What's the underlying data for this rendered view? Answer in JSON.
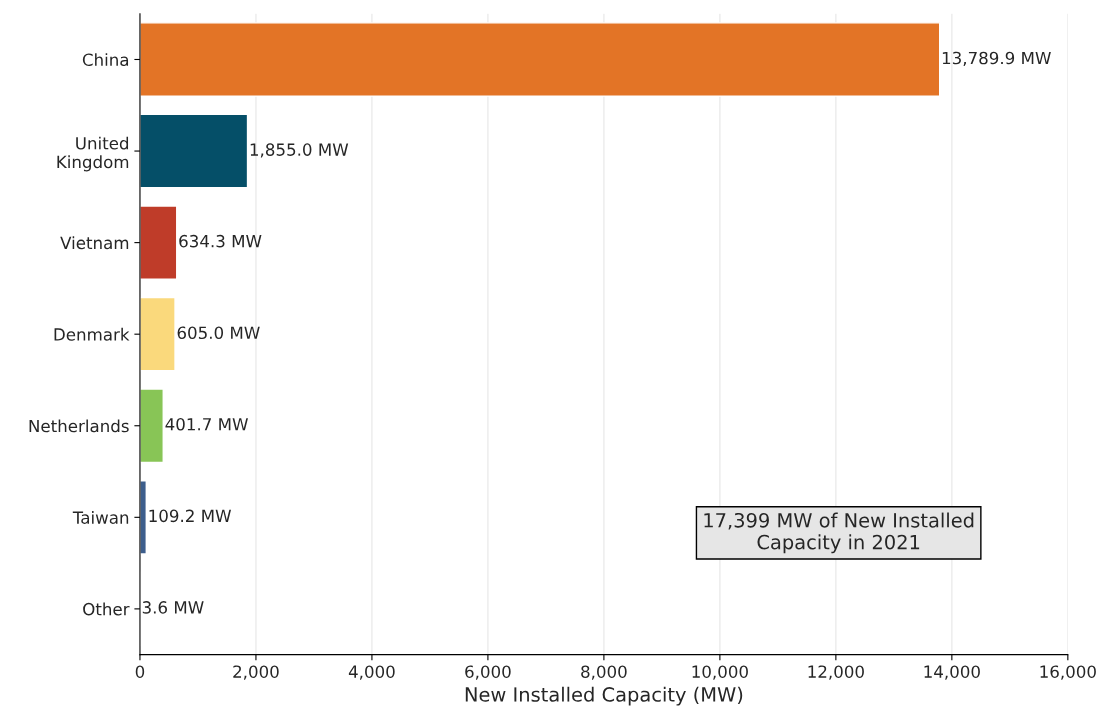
{
  "chart_data": {
    "type": "bar",
    "orientation": "horizontal",
    "xlabel": "New Installed Capacity (MW)",
    "categories": [
      "China",
      "United\nKingdom",
      "Vietnam",
      "Denmark",
      "Netherlands",
      "Taiwan",
      "Other"
    ],
    "values": [
      13789.9,
      1855.0,
      634.3,
      605.0,
      401.7,
      109.2,
      3.6
    ],
    "colors": [
      "#e37426",
      "#054f68",
      "#bf3c29",
      "#fad97c",
      "#88c556",
      "#3d5e8c",
      "#7f7f7f"
    ],
    "value_labels": [
      "13,789.9 MW",
      "1,855.0 MW",
      "634.3 MW",
      "605.0 MW",
      "401.7 MW",
      "109.2 MW",
      "3.6 MW"
    ],
    "xlim": [
      0,
      16000
    ],
    "xticks": [
      {
        "value": 0,
        "label": "0"
      },
      {
        "value": 2000,
        "label": "2,000"
      },
      {
        "value": 4000,
        "label": "4,000"
      },
      {
        "value": 6000,
        "label": "6,000"
      },
      {
        "value": 8000,
        "label": "8,000"
      },
      {
        "value": 10000,
        "label": "10,000"
      },
      {
        "value": 12000,
        "label": "12,000"
      },
      {
        "value": 14000,
        "label": "14,000"
      },
      {
        "value": 16000,
        "label": "16,000"
      }
    ],
    "grid": "x",
    "annotations": [
      "17,399 MW of New Installed\nCapacity in 2021"
    ]
  }
}
